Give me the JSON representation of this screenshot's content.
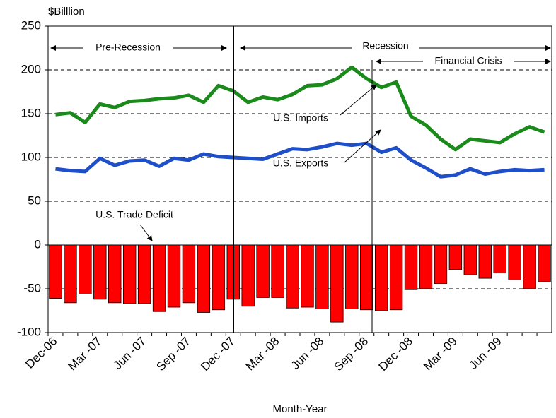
{
  "chart_data": {
    "type": "combo",
    "y_label": "$Billlion",
    "x_label": "Month-Year",
    "categories": [
      "Dec-06",
      null,
      null,
      "Mar -07",
      null,
      null,
      "Jun -07",
      null,
      null,
      "Sep -07",
      null,
      null,
      "Dec -07",
      null,
      null,
      "Mar -08",
      null,
      null,
      "Jun -08",
      null,
      null,
      "Sep -08",
      null,
      null,
      "Dec -08",
      null,
      null,
      "Mar -09",
      null,
      null,
      "Jun -09",
      null,
      null,
      null
    ],
    "series": [
      {
        "name": "U.S. Imports",
        "type": "line",
        "color": "#1a8a1a",
        "values": [
          149,
          151,
          140,
          161,
          157,
          164,
          165,
          167,
          168,
          171,
          163,
          182,
          176,
          163,
          169,
          166,
          172,
          182,
          183,
          190,
          203,
          190,
          180,
          186,
          147,
          137,
          121,
          109,
          121,
          119,
          117,
          127,
          135,
          129
        ]
      },
      {
        "name": "U.S. Exports",
        "type": "line",
        "color": "#1f4fc8",
        "values": [
          87,
          85,
          84,
          99,
          91,
          96,
          97,
          90,
          99,
          97,
          104,
          101,
          100,
          99,
          98,
          104,
          110,
          109,
          112,
          116,
          114,
          116,
          106,
          111,
          97,
          88,
          78,
          80,
          87,
          81,
          84,
          86,
          85,
          86
        ]
      },
      {
        "name": "U.S. Trade Deficit",
        "type": "bar",
        "color": "#ff0000",
        "values": [
          -61,
          -66,
          -56,
          -62,
          -66,
          -67,
          -67,
          -76,
          -71,
          -66,
          -77,
          -74,
          -62,
          -70,
          -60,
          -60,
          -72,
          -71,
          -73,
          -88,
          -73,
          -74,
          -75,
          -74,
          -51,
          -50,
          -44,
          -28,
          -34,
          -38,
          -32,
          -40,
          -50,
          -42
        ]
      }
    ],
    "annotations": [
      "Pre-Recession",
      "Recession",
      "Financial Crisis"
    ],
    "ylim": [
      -100,
      250
    ],
    "yticks": [
      -100,
      -50,
      0,
      50,
      100,
      150,
      200,
      250
    ],
    "grid": true
  }
}
